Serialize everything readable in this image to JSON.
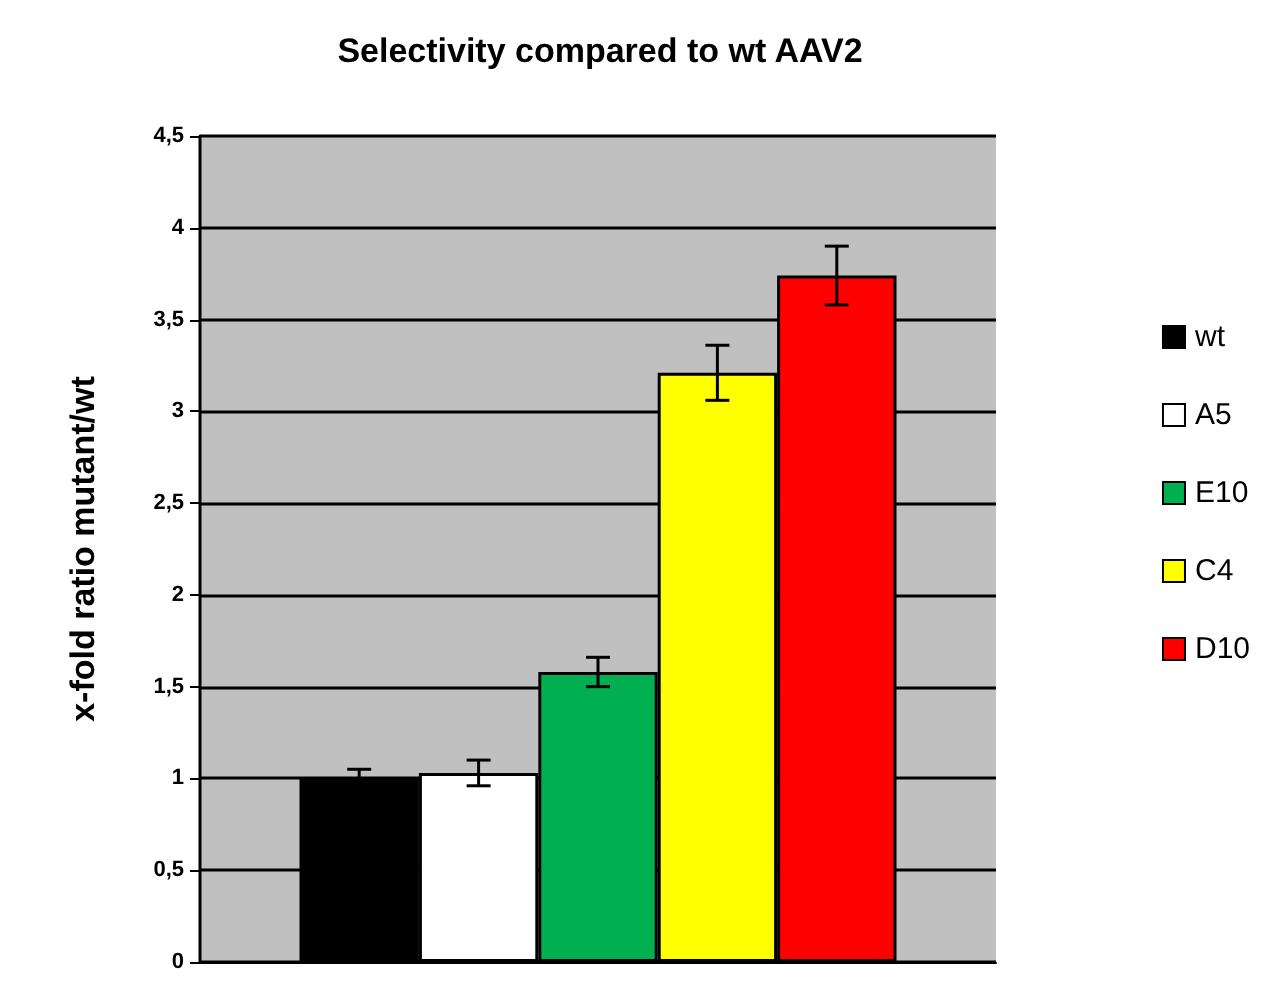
{
  "chart_data": {
    "type": "bar",
    "title": "Selectivity compared to wt AAV2",
    "ylabel": "x-fold ratio mutant/wt",
    "categories": [
      null
    ],
    "series": [
      {
        "name": "wt",
        "color": "#000000",
        "values": [
          1.0
        ],
        "errors": [
          0.05
        ]
      },
      {
        "name": "A5",
        "color": "#ffffff",
        "values": [
          1.03
        ],
        "errors": [
          0.07
        ]
      },
      {
        "name": "E10",
        "color": "#00b050",
        "values": [
          1.58
        ],
        "errors": [
          0.08
        ]
      },
      {
        "name": "C4",
        "color": "#ffff00",
        "values": [
          3.21
        ],
        "errors": [
          0.15
        ]
      },
      {
        "name": "D10",
        "color": "#ff0000",
        "values": [
          3.74
        ],
        "errors": [
          0.16
        ]
      }
    ],
    "ylim": [
      0,
      4.5
    ],
    "yticks": [
      {
        "value": 0,
        "label": "0"
      },
      {
        "value": 0.5,
        "label": "0,5"
      },
      {
        "value": 1,
        "label": "1"
      },
      {
        "value": 1.5,
        "label": "1,5"
      },
      {
        "value": 2,
        "label": "2"
      },
      {
        "value": 2.5,
        "label": "2,5"
      },
      {
        "value": 3,
        "label": "3"
      },
      {
        "value": 3.5,
        "label": "3,5"
      },
      {
        "value": 4,
        "label": "4"
      },
      {
        "value": 4.5,
        "label": "4,5"
      }
    ],
    "grid": "y",
    "legend": "right"
  }
}
